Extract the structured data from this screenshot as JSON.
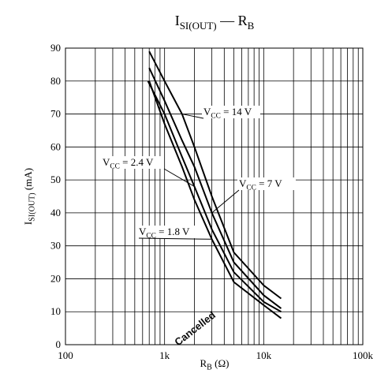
{
  "chart_data": {
    "type": "line",
    "title": {
      "main": "I",
      "sub": "SI(OUT)",
      "sep": " — ",
      "main2": "R",
      "sub2": "B"
    },
    "x_label": {
      "main": "R",
      "sub": "B",
      "rest": "  (Ω)"
    },
    "y_label": {
      "main": "I",
      "sub": "SI(OUT)",
      "rest": "  (mA)"
    },
    "x_log": true,
    "xlim": [
      100,
      100000
    ],
    "xticks": [
      100,
      {
        "value": 1000,
        "label": "1k"
      },
      {
        "value": 10000,
        "label": "10k"
      },
      {
        "value": 100000,
        "label": "100k"
      }
    ],
    "xminorticks": [
      200,
      300,
      400,
      500,
      600,
      700,
      800,
      900,
      2000,
      3000,
      4000,
      5000,
      6000,
      7000,
      8000,
      9000,
      20000,
      30000,
      40000,
      50000,
      60000,
      70000,
      80000,
      90000
    ],
    "ylim": [
      0,
      90
    ],
    "yticks": [
      0,
      10,
      20,
      30,
      40,
      50,
      60,
      70,
      80,
      90
    ],
    "grid": true,
    "series": [
      {
        "name": {
          "main": "V",
          "sub": "CC",
          "rest": " = 14 V"
        },
        "color": "#000000",
        "x": [
          700,
          1000,
          1500,
          2000,
          3000,
          5000,
          10000,
          15000
        ],
        "values": [
          89,
          80,
          70,
          60,
          45,
          28,
          18,
          14
        ]
      },
      {
        "name": {
          "main": "V",
          "sub": "CC",
          "rest": " = 7 V"
        },
        "color": "#000000",
        "x": [
          700,
          1000,
          1500,
          2000,
          3000,
          5000,
          10000,
          15000
        ],
        "values": [
          84,
          74,
          62,
          54,
          40,
          25,
          15,
          11
        ]
      },
      {
        "name": {
          "main": "V",
          "sub": "CC",
          "rest": " = 2.4 V"
        },
        "color": "#000000",
        "x": [
          680,
          1000,
          1500,
          2000,
          3000,
          5000,
          10000,
          15000
        ],
        "values": [
          80,
          70,
          57,
          48,
          35,
          22,
          13,
          10
        ]
      },
      {
        "name": {
          "main": "V",
          "sub": "CC",
          "rest": " = 1.8 V"
        },
        "color": "#000000",
        "x": [
          700,
          1000,
          1500,
          2000,
          3000,
          5000,
          10000,
          15000
        ],
        "values": [
          80,
          67,
          54,
          44,
          32,
          19,
          12,
          8
        ]
      }
    ],
    "watermark": "Cancelled"
  }
}
